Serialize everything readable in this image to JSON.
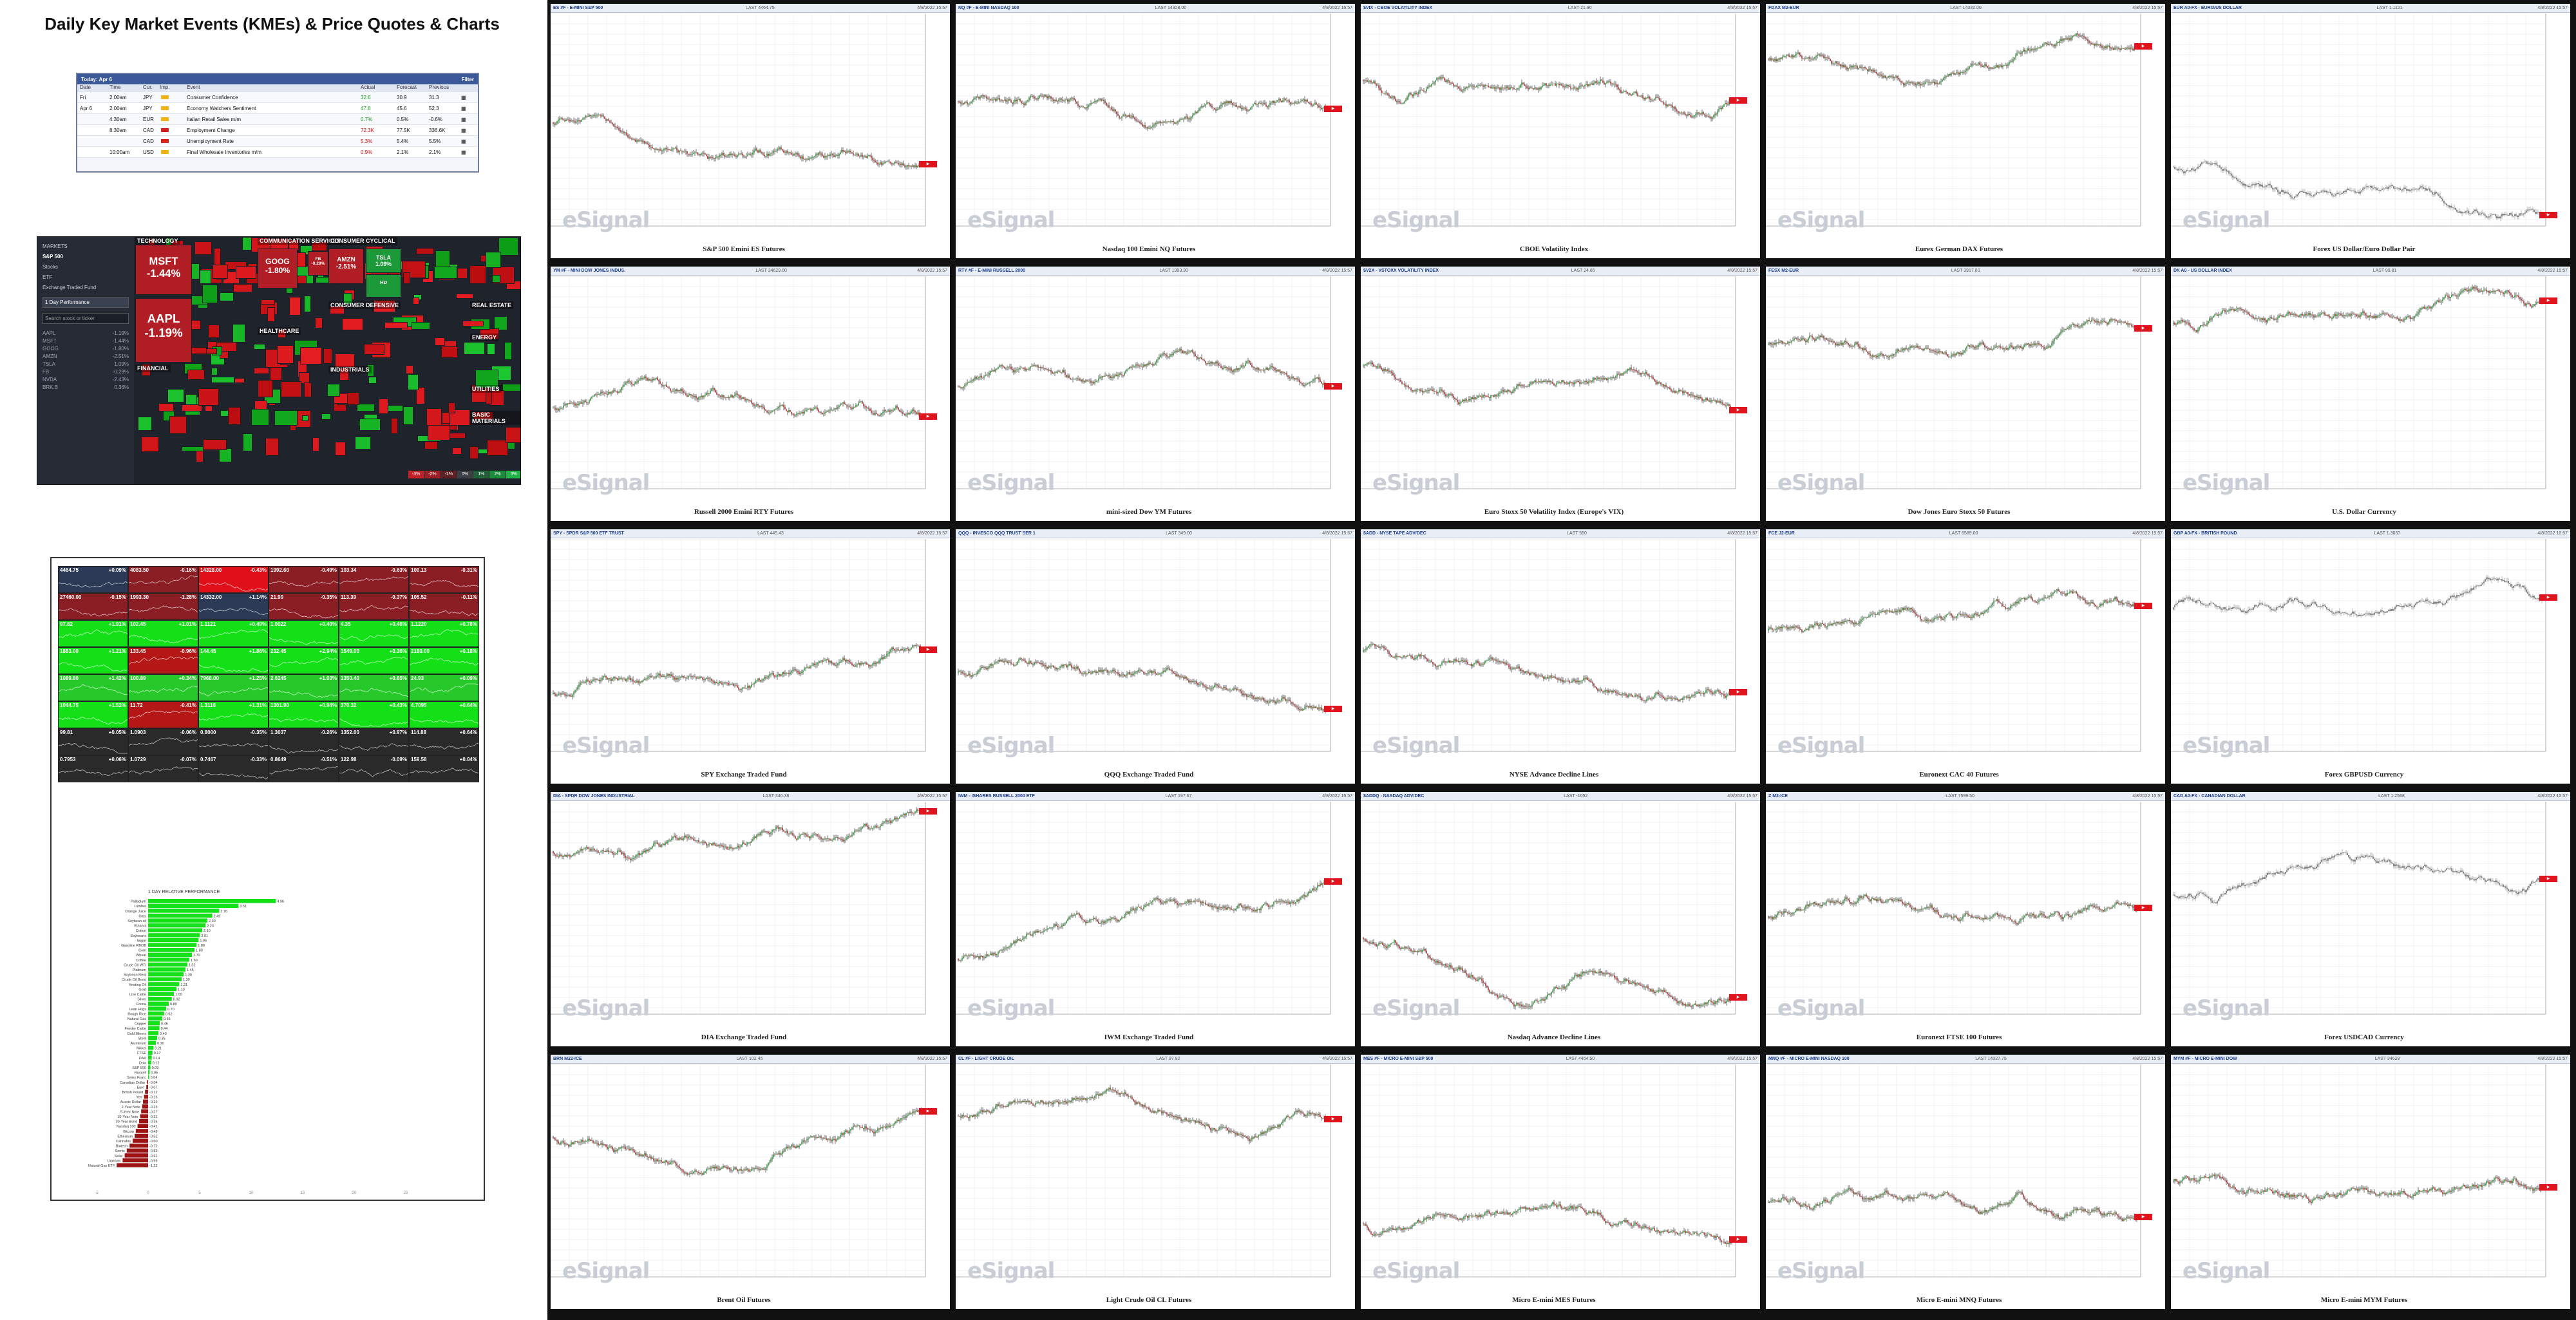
{
  "page": {
    "title": "Daily Key Market Events (KMEs) & Price Quotes & Charts"
  },
  "calendar": {
    "header": "Today: Apr 6",
    "filter_label": "Filter",
    "columns": [
      "Date",
      "Time",
      "Cur.",
      "Imp.",
      "Event",
      "Actual",
      "Forecast",
      "Previous",
      ""
    ],
    "rows": [
      {
        "date": "Fri",
        "time": "2:00am",
        "ccy": "JPY",
        "imp": "low",
        "event": "Consumer Confidence",
        "actual": "32.6",
        "forecast": "30.9",
        "previous": "31.3"
      },
      {
        "date": "Apr 6",
        "time": "2:00am",
        "ccy": "JPY",
        "imp": "low",
        "event": "Economy Watchers Sentiment",
        "actual": "47.8",
        "forecast": "45.6",
        "previous": "52.3"
      },
      {
        "date": "",
        "time": "4:30am",
        "ccy": "EUR",
        "imp": "low",
        "event": "Italian Retail Sales m/m",
        "actual": "0.7%",
        "forecast": "0.5%",
        "previous": "-0.6%"
      },
      {
        "date": "",
        "time": "8:30am",
        "ccy": "CAD",
        "imp": "high",
        "event": "Employment Change",
        "actual": "72.3K",
        "forecast": "77.5K",
        "previous": "336.6K"
      },
      {
        "date": "",
        "time": "",
        "ccy": "CAD",
        "imp": "high",
        "event": "Unemployment Rate",
        "actual": "5.3%",
        "forecast": "5.4%",
        "previous": "5.5%"
      },
      {
        "date": "",
        "time": "10:00am",
        "ccy": "USD",
        "imp": "low",
        "event": "Final Wholesale Inventories m/m",
        "actual": "0.9%",
        "forecast": "2.1%",
        "previous": "2.1%"
      }
    ]
  },
  "heatmap": {
    "sidebar": {
      "items": [
        "MARKETS",
        "S&P 500",
        "Stocks",
        "ETF",
        "Exchange Traded Fund"
      ],
      "active": 1,
      "timeframe": "1 Day Performance",
      "search_placeholder": "Search stock or ticker",
      "list": [
        {
          "t": "AAPL",
          "v": "-1.19%"
        },
        {
          "t": "MSFT",
          "v": "-1.44%"
        },
        {
          "t": "GOOG",
          "v": "-1.80%"
        },
        {
          "t": "AMZN",
          "v": "-2.51%"
        },
        {
          "t": "TSLA",
          "v": "1.09%"
        },
        {
          "t": "FB",
          "v": "-0.28%"
        },
        {
          "t": "NVDA",
          "v": "-2.43%"
        },
        {
          "t": "BRK.B",
          "v": "0.36%"
        }
      ]
    },
    "sectors": [
      {
        "name": "TECHNOLOGY"
      },
      {
        "name": "COMMUNICATION SERVICES"
      },
      {
        "name": "CONSUMER CYCLICAL"
      },
      {
        "name": "CONSUMER DEFENSIVE"
      },
      {
        "name": "HEALTHCARE"
      },
      {
        "name": "FINANCIAL"
      },
      {
        "name": "INDUSTRIALS"
      },
      {
        "name": "ENERGY"
      },
      {
        "name": "REAL ESTATE"
      },
      {
        "name": "UTILITIES"
      },
      {
        "name": "BASIC MATERIALS"
      }
    ],
    "big_tiles": [
      {
        "ticker": "MSFT",
        "change": "-1.44%"
      },
      {
        "ticker": "AAPL",
        "change": "-1.19%"
      },
      {
        "ticker": "GOOG",
        "change": "-1.80%"
      },
      {
        "ticker": "AMZN",
        "change": "-2.51%"
      },
      {
        "ticker": "TSLA",
        "change": "1.09%"
      },
      {
        "ticker": "FB",
        "change": "-0.28%"
      },
      {
        "ticker": "HD",
        "change": ""
      }
    ],
    "legend": [
      "-3%",
      "-2%",
      "-1%",
      "0%",
      "1%",
      "2%",
      "3%"
    ]
  },
  "quote_grid": {
    "cells": [
      [
        "4464.75",
        "+0.09%"
      ],
      [
        "4083.50",
        "-0.16%"
      ],
      [
        "14328.00",
        "-0.43%"
      ],
      [
        "1992.60",
        "-0.49%"
      ],
      [
        "103.34",
        "-0.63%"
      ],
      [
        "100.13",
        "-0.31%"
      ],
      [
        "27460.00",
        "-0.15%"
      ],
      [
        "1993.30",
        "-1.28%"
      ],
      [
        "14332.00",
        "+1.14%"
      ],
      [
        "21.90",
        "-0.35%"
      ],
      [
        "113.39",
        "-0.37%"
      ],
      [
        "105.52",
        "-0.11%"
      ],
      [
        "97.82",
        "+1.91%"
      ],
      [
        "102.45",
        "+1.01%"
      ],
      [
        "1.1121",
        "+0.49%"
      ],
      [
        "1.0022",
        "+0.40%"
      ],
      [
        "4.35",
        "+0.46%"
      ],
      [
        "1.1220",
        "+0.78%"
      ],
      [
        "1883.00",
        "+1.21%"
      ],
      [
        "133.45",
        "-0.96%"
      ],
      [
        "144.45",
        "+1.86%"
      ],
      [
        "232.45",
        "+2.94%"
      ],
      [
        "1549.00",
        "+0.36%"
      ],
      [
        "2180.00",
        "+0.18%"
      ],
      [
        "1089.80",
        "+1.42%"
      ],
      [
        "100.89",
        "+0.34%"
      ],
      [
        "7968.00",
        "+1.25%"
      ],
      [
        "2.6245",
        "+1.03%"
      ],
      [
        "1350.40",
        "+0.65%"
      ],
      [
        "24.93",
        "+0.09%"
      ],
      [
        "1044.75",
        "+1.52%"
      ],
      [
        "11.72",
        "-0.41%"
      ],
      [
        "1.3116",
        "+1.31%"
      ],
      [
        "1301.90",
        "+0.94%"
      ],
      [
        "370.32",
        "+0.43%"
      ],
      [
        "4.7095",
        "+0.64%"
      ],
      [
        "99.81",
        "+0.05%"
      ],
      [
        "1.0903",
        "-0.06%"
      ],
      [
        "0.8000",
        "-0.35%"
      ],
      [
        "1.3037",
        "-0.26%"
      ],
      [
        "1352.00",
        "+0.97%"
      ],
      [
        "114.88",
        "+0.64%"
      ],
      [
        "0.7953",
        "+0.06%"
      ],
      [
        "1.0729",
        "-0.07%"
      ],
      [
        "0.7467",
        "-0.33%"
      ],
      [
        "0.8649",
        "-0.51%"
      ],
      [
        "122.98",
        "-0.09%"
      ],
      [
        "159.58",
        "+0.04%"
      ]
    ]
  },
  "relperf": {
    "title": "1 DAY RELATIVE PERFORMANCE",
    "items": [
      {
        "name": "Palladium",
        "v": 4.96
      },
      {
        "name": "Lumber",
        "v": 3.51
      },
      {
        "name": "Orange Juice",
        "v": 2.76
      },
      {
        "name": "Oats",
        "v": 2.49
      },
      {
        "name": "Soybean oil",
        "v": 2.3
      },
      {
        "name": "Ethanol",
        "v": 2.23
      },
      {
        "name": "Cotton",
        "v": 2.1
      },
      {
        "name": "Soybeans",
        "v": 2.01
      },
      {
        "name": "Sugar",
        "v": 1.96
      },
      {
        "name": "Gasoline RBOB",
        "v": 1.88
      },
      {
        "name": "Corn",
        "v": 1.8
      },
      {
        "name": "Wheat",
        "v": 1.7
      },
      {
        "name": "Coffee",
        "v": 1.6
      },
      {
        "name": "Crude Oil WTI",
        "v": 1.52
      },
      {
        "name": "Platinum",
        "v": 1.45
      },
      {
        "name": "Soybean Meal",
        "v": 1.38
      },
      {
        "name": "Crude Oil Brent",
        "v": 1.3
      },
      {
        "name": "Heating Oil",
        "v": 1.21
      },
      {
        "name": "Gold",
        "v": 1.1
      },
      {
        "name": "Live Cattle",
        "v": 1.0
      },
      {
        "name": "Silver",
        "v": 0.92
      },
      {
        "name": "Cocoa",
        "v": 0.8
      },
      {
        "name": "Lean Hogs",
        "v": 0.7
      },
      {
        "name": "Rough Rice",
        "v": 0.62
      },
      {
        "name": "Natural Gas",
        "v": 0.55
      },
      {
        "name": "Copper",
        "v": 0.45
      },
      {
        "name": "Feeder Cattle",
        "v": 0.44
      },
      {
        "name": "Gold Miners",
        "v": 0.4
      },
      {
        "name": "Steel",
        "v": 0.35
      },
      {
        "name": "Aluminum",
        "v": 0.3
      },
      {
        "name": "Nikkei",
        "v": 0.21
      },
      {
        "name": "FTSE",
        "v": 0.17
      },
      {
        "name": "DAX",
        "v": 0.14
      },
      {
        "name": "Dow",
        "v": 0.12
      },
      {
        "name": "S&P 500",
        "v": 0.09
      },
      {
        "name": "Russell",
        "v": 0.06
      },
      {
        "name": "Swiss Franc",
        "v": 0.04
      },
      {
        "name": "Canadian Dollar",
        "v": -0.04
      },
      {
        "name": "Euro",
        "v": -0.07
      },
      {
        "name": "British Pound",
        "v": -0.12
      },
      {
        "name": "Yen",
        "v": -0.16
      },
      {
        "name": "Aussie Dollar",
        "v": -0.2
      },
      {
        "name": "2-Year Note",
        "v": -0.23
      },
      {
        "name": "5-Year Note",
        "v": -0.27
      },
      {
        "name": "10-Year Note",
        "v": -0.31
      },
      {
        "name": "30-Year Bond",
        "v": -0.35
      },
      {
        "name": "Nasdaq 100",
        "v": -0.41
      },
      {
        "name": "Bitcoin",
        "v": -0.48
      },
      {
        "name": "Ethereum",
        "v": -0.52
      },
      {
        "name": "Cannabis",
        "v": -0.6
      },
      {
        "name": "Biotech",
        "v": -0.72
      },
      {
        "name": "Semis",
        "v": -0.83
      },
      {
        "name": "Solar",
        "v": -0.91
      },
      {
        "name": "Uranium",
        "v": -0.99
      },
      {
        "name": "Natural Gas ETF",
        "v": -1.22
      }
    ],
    "axis_ticks": [
      "-5",
      "0",
      "5",
      "10",
      "15",
      "20",
      "25"
    ]
  },
  "charts": [
    {
      "symbol": "ES #F - E-MINI S&P 500",
      "quote": "LAST 4464.75",
      "caption": "S&P 500 Emini ES Futures",
      "seed": 1,
      "color": "green"
    },
    {
      "symbol": "NQ #F - E-MINI NASDAQ 100",
      "quote": "LAST 14328.00",
      "caption": "Nasdaq 100 Emini NQ Futures",
      "seed": 2,
      "color": "green"
    },
    {
      "symbol": "$VIX - CBOE VOLATILITY INDEX",
      "quote": "LAST 21.90",
      "caption": "CBOE Volatility Index",
      "seed": 3,
      "color": "green"
    },
    {
      "symbol": "FDAX M2-EUR",
      "quote": "LAST 14332.00",
      "caption": "Eurex German DAX Futures",
      "seed": 4,
      "color": "green"
    },
    {
      "symbol": "EUR A0-FX - EURO/US DOLLAR",
      "quote": "LAST 1.1121",
      "caption": "Forex US Dollar/Euro Dollar Pair",
      "seed": 5,
      "color": "gray"
    },
    {
      "symbol": "YM #F - MINI DOW JONES INDUS.",
      "quote": "LAST 34629.00",
      "caption": "Russell 2000 Emini RTY Futures",
      "seed": 6,
      "color": "green"
    },
    {
      "symbol": "RTY #F - E-MINI RUSSELL 2000",
      "quote": "LAST 1993.30",
      "caption": "mini-sized Dow YM Futures",
      "seed": 7,
      "color": "green"
    },
    {
      "symbol": "$V2X - VSTOXX VOLATILITY INDEX",
      "quote": "LAST 24.65",
      "caption": "Euro Stoxx 50 Volatility Index (Europe's VIX)",
      "seed": 8,
      "color": "green"
    },
    {
      "symbol": "FESX M2-EUR",
      "quote": "LAST 3917.00",
      "caption": "Dow Jones Euro Stoxx 50 Futures",
      "seed": 9,
      "color": "green"
    },
    {
      "symbol": "DX A0 - US DOLLAR INDEX",
      "quote": "LAST 99.81",
      "caption": "U.S. Dollar Currency",
      "seed": 10,
      "color": "green"
    },
    {
      "symbol": "SPY - SPDR S&P 500 ETF TRUST",
      "quote": "LAST 445.43",
      "caption": "SPY Exchange Traded Fund",
      "seed": 11,
      "color": "green"
    },
    {
      "symbol": "QQQ - INVESCO QQQ TRUST SER 1",
      "quote": "LAST 349.00",
      "caption": "QQQ Exchange Traded Fund",
      "seed": 12,
      "color": "green"
    },
    {
      "symbol": "$ADD - NYSE TAPE ADV/DEC",
      "quote": "LAST 550",
      "caption": "NYSE Advance Decline Lines",
      "seed": 13,
      "color": "green"
    },
    {
      "symbol": "FCE J2-EUR",
      "quote": "LAST 6589.00",
      "caption": "Euronext CAC 40 Futures",
      "seed": 14,
      "color": "green"
    },
    {
      "symbol": "GBP A0-FX - BRITISH POUND",
      "quote": "LAST 1.3037",
      "caption": "Forex GBPUSD Currency",
      "seed": 15,
      "color": "gray"
    },
    {
      "symbol": "DIA - SPDR DOW JONES INDUSTRIAL",
      "quote": "LAST 346.38",
      "caption": "DIA Exchange Traded Fund",
      "seed": 16,
      "color": "green"
    },
    {
      "symbol": "IWM - ISHARES RUSSELL 2000 ETF",
      "quote": "LAST 197.67",
      "caption": "IWM Exchange Traded Fund",
      "seed": 17,
      "color": "green"
    },
    {
      "symbol": "$ADDQ - NASDAQ ADV/DEC",
      "quote": "LAST -1052",
      "caption": "Nasdaq Advance Decline Lines",
      "seed": 18,
      "color": "green"
    },
    {
      "symbol": "Z M2-ICE",
      "quote": "LAST 7599.50",
      "caption": "Euronext FTSE 100 Futures",
      "seed": 19,
      "color": "green"
    },
    {
      "symbol": "CAD A0-FX - CANADIAN DOLLAR",
      "quote": "LAST 1.2568",
      "caption": "Forex USDCAD Currency",
      "seed": 20,
      "color": "gray"
    },
    {
      "symbol": "BRN M22-ICE",
      "quote": "LAST 102.45",
      "caption": "Brent Oil Futures",
      "seed": 21,
      "color": "green"
    },
    {
      "symbol": "CL #F - LIGHT CRUDE OIL",
      "quote": "LAST 97.82",
      "caption": "Light Crude Oil CL Futures",
      "seed": 22,
      "color": "green"
    },
    {
      "symbol": "MES #F - MICRO E-MINI S&P 500",
      "quote": "LAST 4464.50",
      "caption": "Micro E-mini MES Futures",
      "seed": 23,
      "color": "green"
    },
    {
      "symbol": "MNQ #F - MICRO E-MINI NASDAQ 100",
      "quote": "LAST 14327.75",
      "caption": "Micro E-mini MNQ Futures",
      "seed": 24,
      "color": "green"
    },
    {
      "symbol": "MYM #F - MICRO E-MINI DOW",
      "quote": "LAST 34628",
      "caption": "Micro E-mini MYM Futures",
      "seed": 25,
      "color": "green"
    }
  ],
  "chart_watermark": "eSignal",
  "chart_date": "4/8/2022 15:57"
}
